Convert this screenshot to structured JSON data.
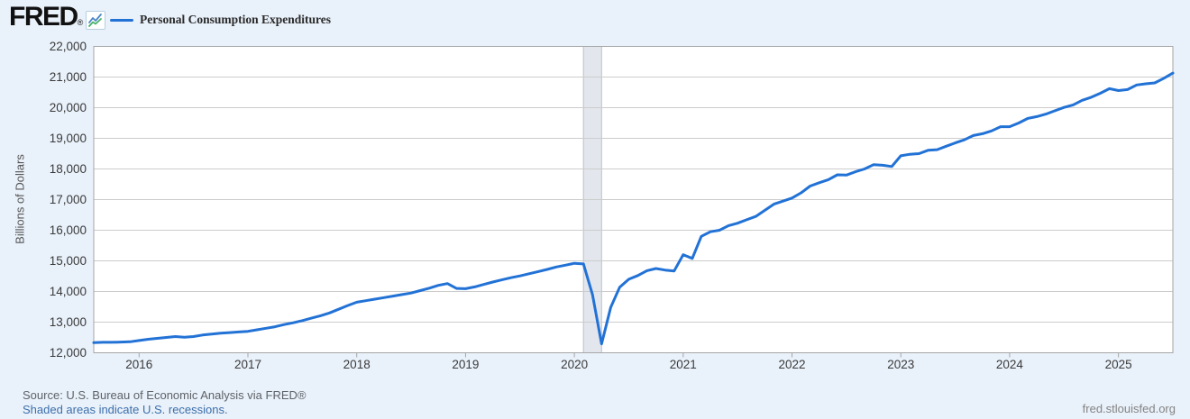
{
  "header": {
    "logo_text": "FRED",
    "registered_mark": "®",
    "legend": {
      "series_label": "Personal Consumption Expenditures"
    }
  },
  "axis": {
    "y_title": "Billions of Dollars"
  },
  "footer": {
    "source_text": "Source: U.S. Bureau of Economic Analysis via FRED®",
    "recession_note": "Shaded areas indicate U.S. recessions.",
    "site_link": "fred.stlouisfed.org"
  },
  "colors": {
    "background": "#e9f1fa",
    "plot_background": "#ffffff",
    "grid": "#cccccc",
    "plot_border": "#a6a6a6",
    "line": "#2272d6",
    "recession_band": "#e3e7ed",
    "recession_band_edge": "#bac1ca",
    "tick_label": "#3a3a3a",
    "axis_title": "#555555",
    "source_text": "#5f6368",
    "link": "#3c6fab",
    "site_link": "#848484",
    "logo": "#111111",
    "legend_label": "#2b2b2b",
    "logo_icon_blue": "#4a86c8",
    "logo_icon_green": "#48b16b"
  },
  "chart_data": {
    "type": "line",
    "title": "Personal Consumption Expenditures",
    "ylabel": "Billions of Dollars",
    "xlabel": "",
    "ylim": [
      12000,
      22000
    ],
    "yticks": [
      12000,
      13000,
      14000,
      15000,
      16000,
      17000,
      18000,
      19000,
      20000,
      21000,
      22000
    ],
    "ytick_labels": [
      "12,000",
      "13,000",
      "14,000",
      "15,000",
      "16,000",
      "17,000",
      "18,000",
      "19,000",
      "20,000",
      "21,000",
      "22,000"
    ],
    "xticks": [
      "2016",
      "2017",
      "2018",
      "2019",
      "2020",
      "2021",
      "2022",
      "2023",
      "2024",
      "2025"
    ],
    "frequency": "monthly",
    "x_range": [
      "2015-08",
      "2025-07"
    ],
    "grid": "horizontal",
    "legend_position": "top-left",
    "recessions": [
      {
        "start": "2020-02",
        "end": "2020-04"
      }
    ],
    "series": [
      {
        "name": "Personal Consumption Expenditures",
        "units": "Billions of Dollars",
        "values": [
          12330,
          12340,
          12340,
          12350,
          12360,
          12400,
          12440,
          12470,
          12500,
          12530,
          12510,
          12530,
          12580,
          12610,
          12640,
          12660,
          12680,
          12700,
          12750,
          12800,
          12850,
          12920,
          12980,
          13050,
          13130,
          13210,
          13300,
          13420,
          13540,
          13650,
          13700,
          13750,
          13800,
          13850,
          13900,
          13950,
          14030,
          14110,
          14200,
          14260,
          14100,
          14090,
          14150,
          14230,
          14310,
          14380,
          14450,
          14510,
          14580,
          14650,
          14720,
          14800,
          14860,
          14920,
          14900,
          13900,
          12290,
          13480,
          14140,
          14400,
          14520,
          14680,
          14750,
          14700,
          14670,
          15200,
          15080,
          15800,
          15950,
          16000,
          16150,
          16230,
          16340,
          16450,
          16650,
          16850,
          16950,
          17050,
          17220,
          17440,
          17550,
          17650,
          17810,
          17800,
          17910,
          18000,
          18140,
          18120,
          18080,
          18430,
          18480,
          18500,
          18610,
          18630,
          18740,
          18850,
          18950,
          19090,
          19150,
          19240,
          19380,
          19380,
          19500,
          19650,
          19710,
          19790,
          19900,
          20010,
          20090,
          20240,
          20340,
          20470,
          20620,
          20560,
          20590,
          20740,
          20780,
          20810,
          20960,
          21130
        ]
      }
    ]
  }
}
